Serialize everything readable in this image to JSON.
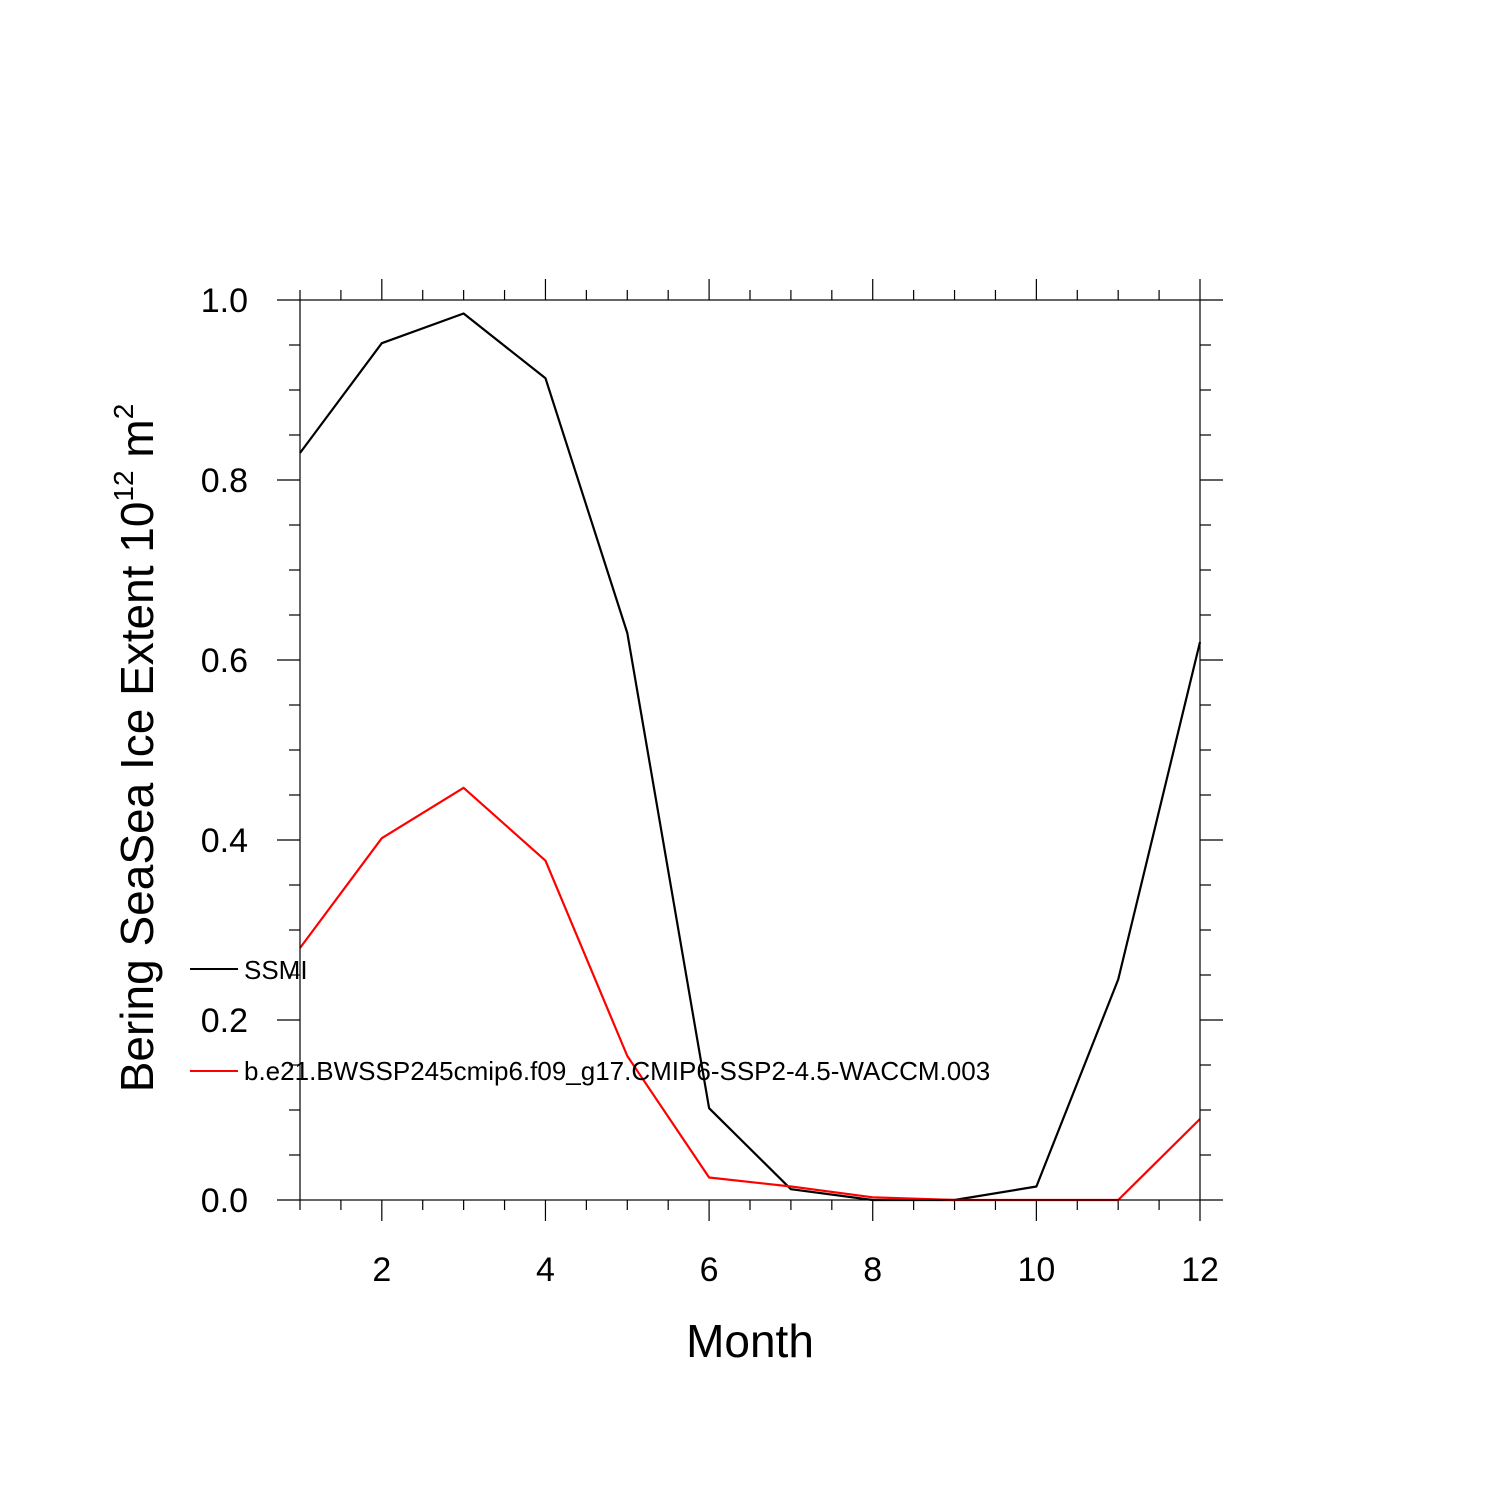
{
  "chart_data": {
    "type": "line",
    "title": "",
    "xlabel": "Month",
    "ylabel": {
      "text": "Bering SeaSea Ice Extent 10",
      "exponent": "12",
      "unit": " m",
      "unit_exponent": "2"
    },
    "xlim": [
      1,
      12
    ],
    "ylim": [
      0.0,
      1.0
    ],
    "x_ticks": [
      2,
      4,
      6,
      8,
      10,
      12
    ],
    "x_tick_labels": [
      "2",
      "4",
      "6",
      "8",
      "10",
      "12"
    ],
    "y_ticks": [
      0.0,
      0.2,
      0.4,
      0.6,
      0.8,
      1.0
    ],
    "y_tick_labels": [
      "0.0",
      "0.2",
      "0.4",
      "0.6",
      "0.8",
      "1.0"
    ],
    "grid": false,
    "legend_position": "left-inside",
    "x": [
      1,
      2,
      3,
      4,
      5,
      6,
      7,
      8,
      9,
      10,
      11,
      12
    ],
    "series": [
      {
        "name": "SSMI",
        "color": "#000000",
        "values": [
          0.83,
          0.952,
          0.985,
          0.913,
          0.63,
          0.102,
          0.012,
          0.0,
          0.0,
          0.015,
          0.245,
          0.62
        ]
      },
      {
        "name": "b.e21.BWSSP245cmip6.f09_g17.CMIP6-SSP2-4.5-WACCM.003",
        "color": "#ff0000",
        "values": [
          0.28,
          0.402,
          0.458,
          0.377,
          0.16,
          0.025,
          0.015,
          0.003,
          0.0,
          0.0,
          0.0,
          0.09
        ]
      }
    ]
  }
}
